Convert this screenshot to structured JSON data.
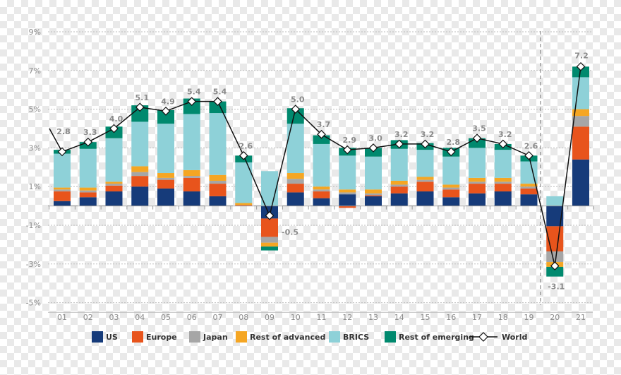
{
  "chart_data": {
    "type": "bar",
    "stacked": true,
    "ylim": [
      -5.5,
      9
    ],
    "yticks": [
      9,
      7,
      5,
      3,
      1,
      -1,
      -3,
      -5
    ],
    "ytick_labels": [
      "9%",
      "7%",
      "5%",
      "3%",
      "1%",
      "-1%",
      "-3%",
      "-5%"
    ],
    "categories": [
      "01",
      "02",
      "03",
      "04",
      "05",
      "06",
      "07",
      "08",
      "09",
      "10",
      "11",
      "12",
      "13",
      "14",
      "15",
      "16",
      "17",
      "18",
      "19",
      "20",
      "21"
    ],
    "series": [
      {
        "name": "US",
        "color": "#163b7a",
        "values": [
          0.25,
          0.45,
          0.75,
          1.0,
          0.9,
          0.75,
          0.5,
          0.0,
          -0.65,
          0.7,
          0.4,
          0.6,
          0.5,
          0.65,
          0.75,
          0.45,
          0.65,
          0.75,
          0.6,
          -1.05,
          2.4
        ]
      },
      {
        "name": "Europe",
        "color": "#e8541c",
        "values": [
          0.5,
          0.25,
          0.3,
          0.55,
          0.45,
          0.7,
          0.65,
          0.05,
          -0.95,
          0.45,
          0.35,
          -0.1,
          0.05,
          0.35,
          0.5,
          0.4,
          0.5,
          0.4,
          0.3,
          -1.3,
          1.7
        ]
      },
      {
        "name": "Japan",
        "color": "#a6a6a6",
        "values": [
          0.1,
          0.1,
          0.1,
          0.2,
          0.1,
          0.1,
          0.15,
          0.0,
          -0.3,
          0.25,
          0.1,
          0.1,
          0.1,
          0.1,
          0.1,
          0.1,
          0.1,
          0.1,
          0.1,
          -0.55,
          0.55
        ]
      },
      {
        "name": "Rest of advanced",
        "color": "#f5a623",
        "values": [
          0.1,
          0.15,
          0.1,
          0.3,
          0.25,
          0.3,
          0.3,
          0.1,
          -0.2,
          0.3,
          0.15,
          0.15,
          0.2,
          0.2,
          0.15,
          0.15,
          0.2,
          0.2,
          0.15,
          -0.25,
          0.35
        ]
      },
      {
        "name": "BRICS",
        "color": "#8ed1d8",
        "values": [
          1.75,
          2.0,
          2.25,
          2.3,
          2.55,
          2.9,
          3.2,
          2.1,
          1.8,
          2.55,
          2.2,
          1.75,
          1.7,
          1.65,
          1.4,
          1.45,
          1.55,
          1.45,
          1.15,
          0.5,
          1.65
        ]
      },
      {
        "name": "Rest of emerging",
        "color": "#00896e",
        "values": [
          0.2,
          0.35,
          0.6,
          0.85,
          0.7,
          0.8,
          0.6,
          0.35,
          -0.2,
          0.8,
          0.45,
          0.4,
          0.45,
          0.45,
          0.35,
          0.45,
          0.5,
          0.3,
          0.3,
          -0.5,
          0.55
        ]
      }
    ],
    "world": {
      "name": "World",
      "values": [
        2.8,
        3.3,
        4.0,
        5.1,
        4.9,
        5.4,
        5.4,
        2.6,
        -0.5,
        5.0,
        3.7,
        2.9,
        3.0,
        3.2,
        3.2,
        2.8,
        3.5,
        3.2,
        2.6,
        -3.1,
        7.2
      ]
    },
    "world_start_value": 4.0,
    "world_labels": [
      "2.8",
      "3.3",
      "4.0",
      "5.1",
      "4.9",
      "5.4",
      "5.4",
      "2.6",
      "-0.5",
      "5.0",
      "3.7",
      "2.9",
      "3.0",
      "3.2",
      "3.2",
      "2.8",
      "3.5",
      "3.2",
      "2.6",
      "-3.1",
      "7.2"
    ],
    "forecast_divider_after": "19",
    "legend": [
      "US",
      "Europe",
      "Japan",
      "Rest of advanced",
      "BRICS",
      "Rest of emerging",
      "World"
    ],
    "legend_position": "bottom"
  }
}
